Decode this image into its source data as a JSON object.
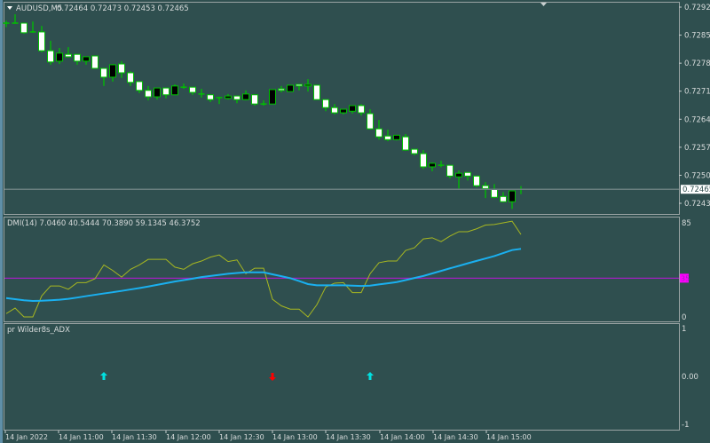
{
  "window": {
    "title": "AUDUSD,M5",
    "ohlc": "0.72464 0.72473 0.72453 0.72465"
  },
  "colors": {
    "background": "#2f4f4f",
    "candle_wick": "#00c000",
    "bear_body": "#ffffff",
    "bull_body": "#000000",
    "bid_line": "#6a7f7f",
    "dmi_line": "#a8b820",
    "adx_line": "#1ab0f0",
    "level_line": "#a020c0",
    "level_badge": "#ff00ff",
    "arrow_up": "#00e0e0",
    "arrow_down": "#ff0000"
  },
  "price_axis": {
    "ticks": [
      "0.72920",
      "0.72850",
      "0.72780",
      "0.72710",
      "0.72640",
      "0.72570",
      "0.72500",
      "0.72430"
    ],
    "current_price": "0.72465"
  },
  "dmi_panel": {
    "title": "DMI(14) 7.0460 40.5444 70.3890 59.1345 46.3752",
    "ticks": [
      "85",
      "0"
    ],
    "level": "35"
  },
  "adx_panel": {
    "title": "pr Wilder8s_ADX",
    "ticks": [
      "1",
      "0.00",
      "-1"
    ]
  },
  "time_axis": {
    "labels": [
      "14 Jan 2022",
      "14 Jan 11:00",
      "14 Jan 11:30",
      "14 Jan 12:00",
      "14 Jan 12:30",
      "14 Jan 13:00",
      "14 Jan 13:30",
      "14 Jan 14:00",
      "14 Jan 14:30",
      "14 Jan 15:00"
    ]
  },
  "chart_data": [
    {
      "type": "candlestick",
      "symbol": "AUDUSD",
      "timeframe": "M5",
      "ylim": [
        0.7241,
        0.7293
      ],
      "x": [
        "10:30",
        "10:35",
        "10:40",
        "10:45",
        "10:50",
        "10:55",
        "11:00",
        "11:05",
        "11:10",
        "11:15",
        "11:20",
        "11:25",
        "11:30",
        "11:35",
        "11:40",
        "11:45",
        "11:50",
        "11:55",
        "12:00",
        "12:05",
        "12:10",
        "12:15",
        "12:20",
        "12:25",
        "12:30",
        "12:35",
        "12:40",
        "12:45",
        "12:50",
        "12:55",
        "13:00",
        "13:05",
        "13:10",
        "13:15",
        "13:20",
        "13:25",
        "13:30",
        "13:35",
        "13:40",
        "13:45",
        "13:50",
        "13:55",
        "14:00",
        "14:05",
        "14:10",
        "14:15",
        "14:20",
        "14:25",
        "14:30",
        "14:35",
        "14:40",
        "14:45",
        "14:50",
        "14:55",
        "15:00",
        "15:05",
        "15:10",
        "15:15",
        "15:20"
      ],
      "ohlc": [
        [
          0.7288,
          0.72886,
          0.7287,
          0.7288
        ],
        [
          0.7288,
          0.72902,
          0.72879,
          0.7288
        ],
        [
          0.7288,
          0.7288,
          0.72853,
          0.72856
        ],
        [
          0.72858,
          0.72884,
          0.72856,
          0.72858
        ],
        [
          0.72858,
          0.72873,
          0.72807,
          0.72811
        ],
        [
          0.72811,
          0.72836,
          0.72776,
          0.72783
        ],
        [
          0.72785,
          0.72818,
          0.72778,
          0.72805
        ],
        [
          0.72802,
          0.7282,
          0.72794,
          0.72796
        ],
        [
          0.72802,
          0.72802,
          0.72776,
          0.72785
        ],
        [
          0.72785,
          0.72796,
          0.72776,
          0.72796
        ],
        [
          0.72798,
          0.72798,
          0.72767,
          0.72767
        ],
        [
          0.72767,
          0.72767,
          0.72723,
          0.72745
        ],
        [
          0.72745,
          0.72778,
          0.72734,
          0.72776
        ],
        [
          0.72778,
          0.72785,
          0.72743,
          0.72756
        ],
        [
          0.72756,
          0.7276,
          0.72723,
          0.72732
        ],
        [
          0.72734,
          0.72734,
          0.72705,
          0.72712
        ],
        [
          0.72712,
          0.72723,
          0.72687,
          0.72696
        ],
        [
          0.72696,
          0.72718,
          0.72689,
          0.72718
        ],
        [
          0.72718,
          0.72718,
          0.72692,
          0.72701
        ],
        [
          0.72701,
          0.72727,
          0.72701,
          0.72723
        ],
        [
          0.7272,
          0.72729,
          0.72716,
          0.7272
        ],
        [
          0.7272,
          0.7272,
          0.72701,
          0.72707
        ],
        [
          0.72703,
          0.72716,
          0.72694,
          0.72703
        ],
        [
          0.72701,
          0.72701,
          0.72683,
          0.72689
        ],
        [
          0.72694,
          0.72696,
          0.72678,
          0.72694
        ],
        [
          0.72692,
          0.72703,
          0.72689,
          0.72698
        ],
        [
          0.72698,
          0.72698,
          0.7268,
          0.72689
        ],
        [
          0.72689,
          0.72712,
          0.72687,
          0.72703
        ],
        [
          0.72701,
          0.72701,
          0.72674,
          0.72678
        ],
        [
          0.72678,
          0.72687,
          0.72674,
          0.72678
        ],
        [
          0.72678,
          0.72714,
          0.72678,
          0.72714
        ],
        [
          0.72716,
          0.72723,
          0.72707,
          0.72712
        ],
        [
          0.72709,
          0.72725,
          0.72709,
          0.72725
        ],
        [
          0.72727,
          0.72727,
          0.72712,
          0.72723
        ],
        [
          0.72723,
          0.7274,
          0.72709,
          0.72727
        ],
        [
          0.72725,
          0.72725,
          0.72689,
          0.72689
        ],
        [
          0.72689,
          0.72689,
          0.7266,
          0.72669
        ],
        [
          0.72669,
          0.72678,
          0.72652,
          0.72656
        ],
        [
          0.72656,
          0.72665,
          0.72652,
          0.72665
        ],
        [
          0.7266,
          0.72674,
          0.72654,
          0.72674
        ],
        [
          0.72674,
          0.72678,
          0.72649,
          0.72656
        ],
        [
          0.72654,
          0.72665,
          0.72614,
          0.72616
        ],
        [
          0.72616,
          0.72638,
          0.72589,
          0.72596
        ],
        [
          0.72598,
          0.72614,
          0.72585,
          0.72589
        ],
        [
          0.72589,
          0.726,
          0.72587,
          0.726
        ],
        [
          0.72596,
          0.72603,
          0.72561,
          0.72563
        ],
        [
          0.72565,
          0.72565,
          0.7255,
          0.72554
        ],
        [
          0.72554,
          0.72563,
          0.72516,
          0.72521
        ],
        [
          0.72521,
          0.72532,
          0.7251,
          0.7253
        ],
        [
          0.72525,
          0.72536,
          0.7252,
          0.72525
        ],
        [
          0.72525,
          0.72525,
          0.72492,
          0.72498
        ],
        [
          0.72496,
          0.72512,
          0.72467,
          0.72505
        ],
        [
          0.72507,
          0.72507,
          0.72487,
          0.72498
        ],
        [
          0.72498,
          0.72498,
          0.7247,
          0.72474
        ],
        [
          0.72474,
          0.72483,
          0.72443,
          0.72467
        ],
        [
          0.72465,
          0.72478,
          0.72443,
          0.72445
        ],
        [
          0.72447,
          0.72458,
          0.72432,
          0.72434
        ],
        [
          0.72434,
          0.72461,
          0.72416,
          0.72461
        ],
        [
          0.72464,
          0.72473,
          0.72453,
          0.72465
        ]
      ]
    },
    {
      "type": "line",
      "title": "DMI(14)",
      "ylim": [
        0,
        85
      ],
      "level": 35,
      "series": [
        {
          "values": [
            3,
            8,
            0,
            0,
            19,
            28,
            28,
            25,
            31,
            31,
            34.5,
            47,
            42,
            36,
            43,
            47,
            52,
            52,
            52,
            45,
            43,
            48,
            50.5,
            54,
            56,
            50,
            51.5,
            39,
            44,
            44,
            16,
            10,
            7,
            7,
            0,
            11,
            27,
            30.5,
            31,
            22,
            22,
            39,
            49,
            50.5,
            50.5,
            60,
            62.5,
            70.5,
            71.5,
            68,
            73,
            77,
            77,
            79.6,
            83,
            83.5,
            85,
            86.5,
            74.5
          ]
        },
        {
          "values": [
            17,
            16,
            15,
            14.4,
            14.6,
            15,
            15.5,
            16.3,
            17.5,
            18.8,
            20,
            21.2,
            22.3,
            23.5,
            24.8,
            26.1,
            27.5,
            29,
            30.5,
            32,
            33.3,
            34.6,
            36,
            37,
            38,
            39,
            39.7,
            40.3,
            40.3,
            40.3,
            38.5,
            36.8,
            35,
            32.4,
            29.7,
            28.6,
            28.6,
            28.6,
            28.6,
            28.3,
            28,
            28.3,
            29.4,
            30.4,
            31.5,
            33.3,
            35.2,
            37,
            39.3,
            41.6,
            43.9,
            46.1,
            48.4,
            50.6,
            52.8,
            55,
            57.7,
            60.4,
            61.5
          ]
        }
      ]
    },
    {
      "type": "scatter",
      "title": "pr Wilder8s_ADX",
      "ylim": [
        -1,
        1
      ],
      "signals": [
        {
          "x": "11:25",
          "value": 0,
          "direction": "up"
        },
        {
          "x": "13:00",
          "value": 0,
          "direction": "down"
        },
        {
          "x": "13:55",
          "value": 0,
          "direction": "up"
        }
      ]
    }
  ]
}
